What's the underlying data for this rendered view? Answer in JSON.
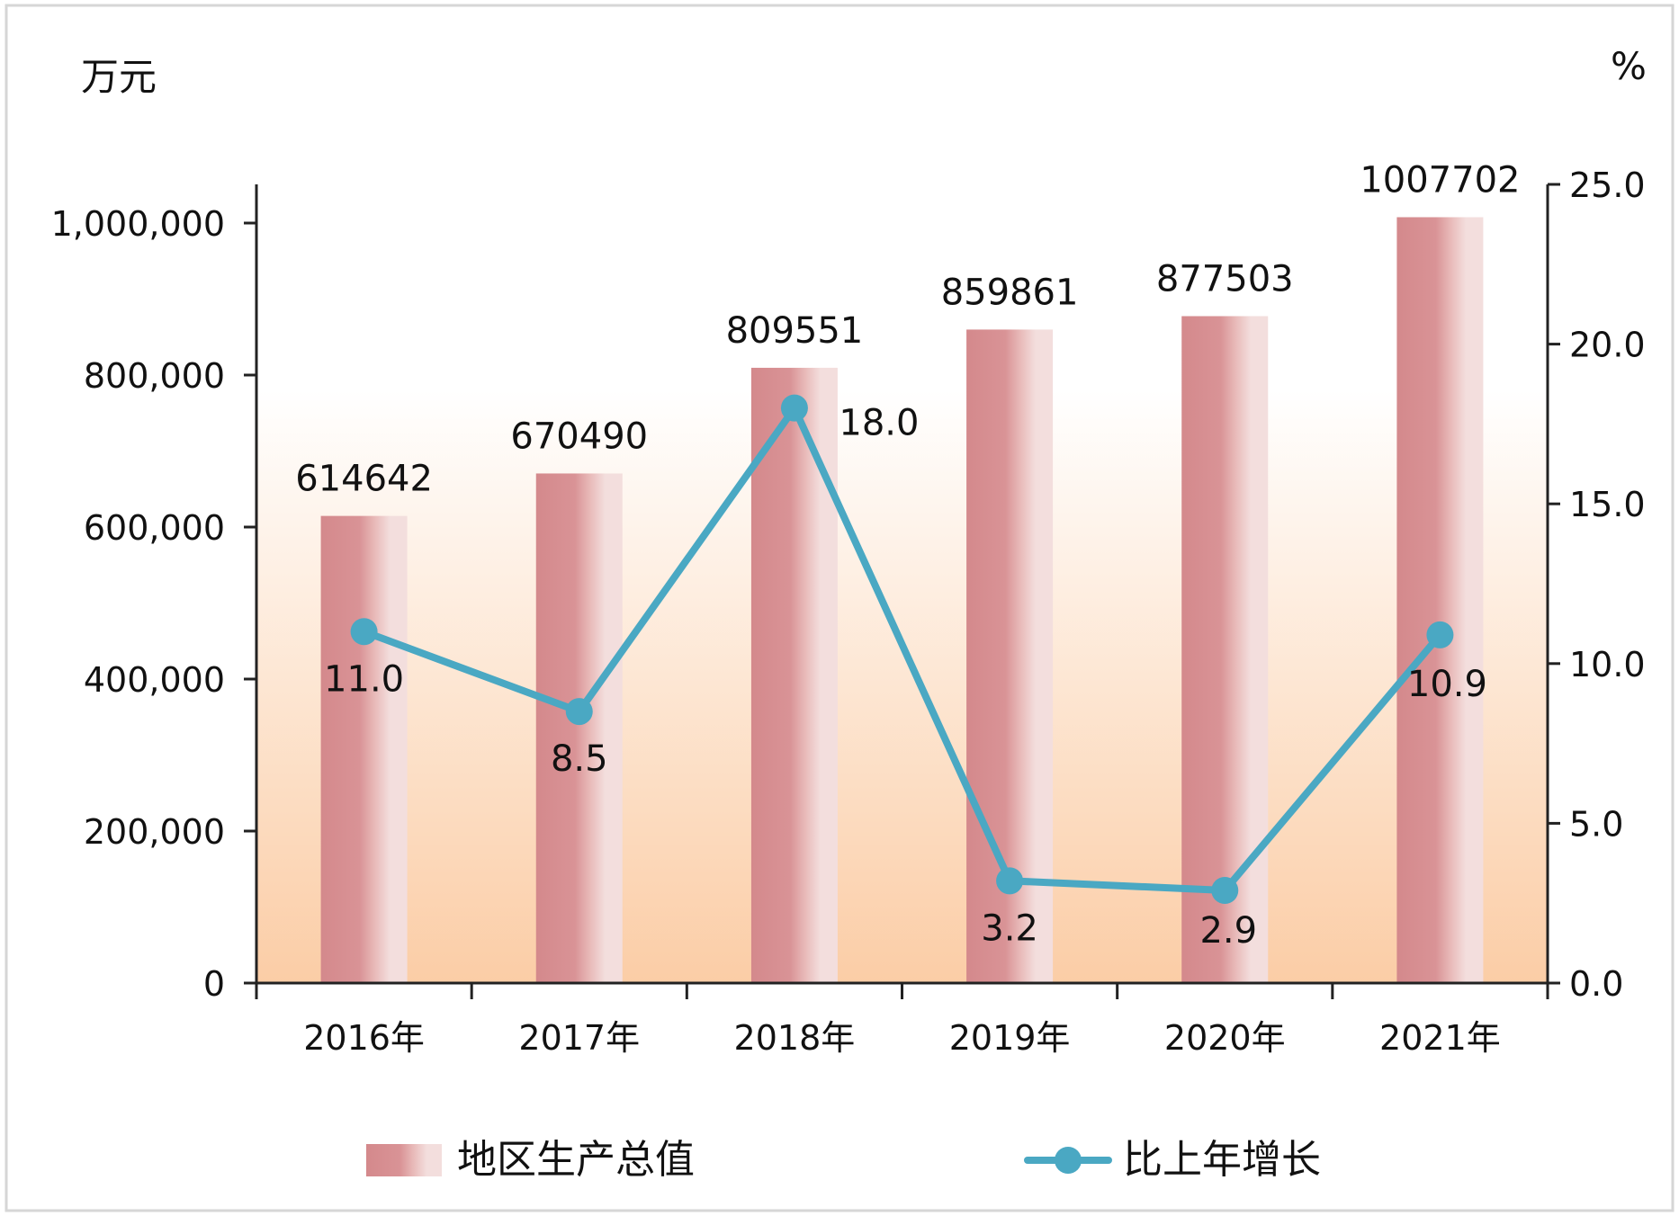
{
  "chart_data": {
    "type": "bar",
    "title": "",
    "categories": [
      "2016年",
      "2017年",
      "2018年",
      "2019年",
      "2020年",
      "2021年"
    ],
    "y_left_unit": "万元",
    "y_right_unit": "%",
    "y_left_range": [
      0,
      1000000
    ],
    "y_left_ticks": [
      "0",
      "200,000",
      "400,000",
      "600,000",
      "800,000",
      "1,000,000"
    ],
    "y_right_range": [
      0,
      25
    ],
    "y_right_ticks": [
      "0.0",
      "5.0",
      "10.0",
      "15.0",
      "20.0",
      "25.0"
    ],
    "series": [
      {
        "name": "地区生产总值",
        "type": "bar",
        "axis": "left",
        "values": [
          614642,
          670490,
          809551,
          859861,
          877503,
          1007702
        ],
        "labels": [
          "614642",
          "670490",
          "809551",
          "859861",
          "877503",
          "1007702"
        ]
      },
      {
        "name": "比上年增长",
        "type": "line",
        "axis": "right",
        "values": [
          11.0,
          8.5,
          18.0,
          3.2,
          2.9,
          10.9
        ],
        "labels": [
          "11.0",
          "8.5",
          "18.0",
          "3.2",
          "2.9",
          "10.9"
        ]
      }
    ],
    "grid": false,
    "legend": "bottom",
    "colors": {
      "bar_dark": "#d4898c",
      "bar_light": "#f3dedd",
      "line": "#4aa8c3",
      "bg_top": "#ffffff",
      "bg_bottom": "#fbcda6",
      "axis": "#222222"
    }
  }
}
